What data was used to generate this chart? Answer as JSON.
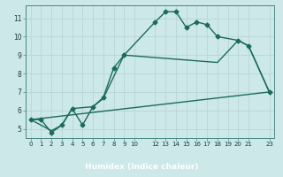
{
  "xlabel": "Humidex (Indice chaleur)",
  "bg_color": "#cce8e8",
  "grid_color": "#b8d4d4",
  "line_color": "#1a6b5a",
  "xlabel_bar_color": "#2a5a5a",
  "xlabel_text_color": "#ffffff",
  "xlim": [
    -0.5,
    23.5
  ],
  "ylim": [
    4.5,
    11.7
  ],
  "xticks": [
    0,
    1,
    2,
    3,
    4,
    5,
    6,
    7,
    8,
    9,
    10,
    12,
    13,
    14,
    15,
    16,
    17,
    18,
    19,
    20,
    21,
    23
  ],
  "yticks": [
    5,
    6,
    7,
    8,
    9,
    10,
    11
  ],
  "series1_x": [
    0,
    1,
    2,
    3,
    4,
    5,
    6,
    7,
    8,
    9,
    12,
    13,
    14,
    15,
    16,
    17,
    18,
    20,
    21,
    23
  ],
  "series1_y": [
    5.5,
    5.5,
    4.8,
    5.2,
    6.1,
    5.2,
    6.2,
    6.7,
    8.3,
    9.0,
    10.8,
    11.35,
    11.35,
    10.5,
    10.8,
    10.65,
    10.0,
    9.8,
    9.5,
    7.0
  ],
  "series2_x": [
    0,
    2,
    3,
    4,
    6,
    7,
    9,
    18,
    20,
    21,
    23
  ],
  "series2_y": [
    5.5,
    4.9,
    5.2,
    6.1,
    6.2,
    6.65,
    9.0,
    8.6,
    9.8,
    9.5,
    7.0
  ],
  "series3_x": [
    0,
    23
  ],
  "series3_y": [
    5.5,
    7.0
  ],
  "marker": "D",
  "markersize": 2.5,
  "linewidth1": 1.0,
  "linewidth2": 1.0,
  "linewidth3": 1.0
}
